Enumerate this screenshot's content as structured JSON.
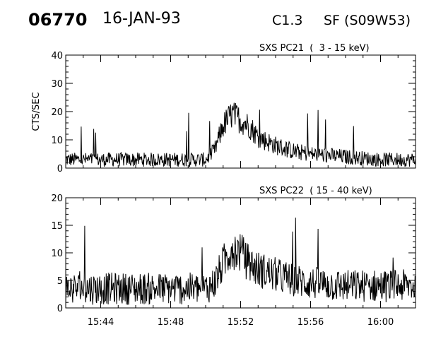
{
  "header": {
    "event_id": "06770",
    "date": "16-JAN-93",
    "goes_class": "C1.3",
    "location": "SF (S09W53)"
  },
  "chart_data": [
    {
      "type": "line",
      "title": "SXS PC21  (  3 - 15 keV)",
      "xlabel": "",
      "ylabel": "CTS/SEC",
      "xlim": [
        "15:42",
        "16:02"
      ],
      "ylim": [
        0,
        40
      ],
      "x_ticks": [
        "15:44",
        "15:48",
        "15:52",
        "15:56",
        "16:00"
      ],
      "y_ticks": [
        0,
        10,
        20,
        30,
        40
      ],
      "grid": false,
      "series": [
        {
          "x": [
            "15:42",
            "15:44",
            "15:46",
            "15:48",
            "15:50",
            "15:50.5",
            "15:51",
            "15:51.5",
            "15:52",
            "15:52.5",
            "15:53",
            "15:54",
            "15:55",
            "15:56",
            "15:58",
            "16:00",
            "16:02"
          ],
          "values": [
            3,
            3,
            3,
            3,
            3,
            6,
            15,
            19,
            17,
            15,
            11,
            8,
            6,
            5,
            4,
            3,
            3
          ]
        }
      ]
    },
    {
      "type": "line",
      "title": "SXS PC22  ( 15 - 40 keV)",
      "xlabel": "",
      "ylabel": "",
      "xlim": [
        "15:42",
        "16:02"
      ],
      "ylim": [
        0,
        20
      ],
      "x_ticks": [
        "15:44",
        "15:48",
        "15:52",
        "15:56",
        "16:00"
      ],
      "y_ticks": [
        0,
        5,
        10,
        15,
        20
      ],
      "grid": false,
      "series": [
        {
          "x": [
            "15:42",
            "15:44",
            "15:46",
            "15:48",
            "15:50",
            "15:50.5",
            "15:51",
            "15:51.5",
            "15:52",
            "15:52.5",
            "15:53",
            "15:54",
            "15:55",
            "15:56",
            "15:58",
            "16:00",
            "16:02"
          ],
          "values": [
            3.5,
            3.5,
            3.5,
            3.5,
            3.5,
            4.5,
            8,
            11,
            10,
            8,
            7,
            6,
            5,
            4.5,
            4,
            4,
            4
          ]
        }
      ]
    }
  ]
}
